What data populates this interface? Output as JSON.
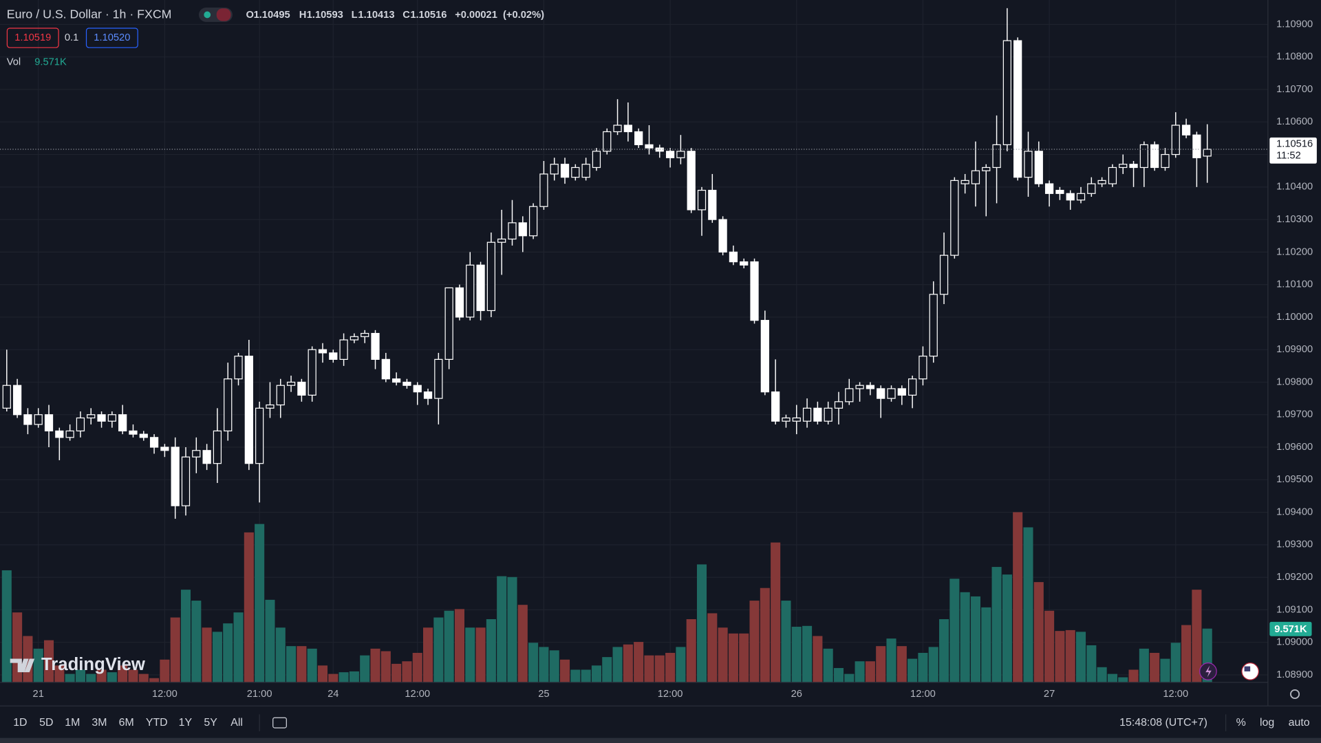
{
  "header": {
    "symbol": "Euro / U.S. Dollar · 1h · FXCM",
    "ohlc_labels": [
      "O",
      "H",
      "L",
      "C"
    ],
    "change": "+0.00021",
    "change_pct": "(+0.02%)",
    "bid": "1.10519",
    "spread": "0.1",
    "ask": "1.10520",
    "volume_label": "Vol"
  },
  "chart_data": {
    "type": "candlestick",
    "color": "#ffffff",
    "grid": true,
    "categories": [
      null,
      null,
      null,
      "21",
      null,
      null,
      null,
      null,
      null,
      null,
      null,
      null,
      null,
      null,
      null,
      "12:00",
      null,
      null,
      null,
      null,
      null,
      null,
      null,
      null,
      "21:00",
      null,
      null,
      null,
      null,
      null,
      null,
      "24",
      null,
      null,
      null,
      null,
      null,
      null,
      null,
      "12:00",
      null,
      null,
      null,
      null,
      null,
      null,
      null,
      null,
      null,
      null,
      null,
      "25",
      null,
      null,
      null,
      null,
      null,
      null,
      null,
      null,
      null,
      null,
      null,
      "12:00",
      null,
      null,
      null,
      null,
      null,
      null,
      null,
      null,
      null,
      null,
      null,
      "26",
      null,
      null,
      null,
      null,
      null,
      null,
      null,
      null,
      null,
      null,
      null,
      "12:00",
      null,
      null,
      null,
      null,
      null,
      null,
      null,
      null,
      null,
      null,
      null,
      "27",
      null,
      null,
      null,
      null,
      null,
      null,
      null,
      null,
      null,
      null,
      null,
      "12:00",
      null,
      null,
      null
    ],
    "open": [
      1.0972,
      1.0979,
      1.097,
      1.0967,
      1.097,
      1.0965,
      1.0963,
      1.0965,
      1.0969,
      1.097,
      1.0968,
      1.097,
      1.0965,
      1.0964,
      1.0963,
      1.096,
      1.096,
      1.0942,
      1.0957,
      1.0959,
      1.0955,
      1.0965,
      1.0981,
      1.0988,
      1.0955,
      1.0972,
      1.0973,
      1.0979,
      1.098,
      1.0976,
      1.099,
      1.0989,
      1.0987,
      1.0993,
      1.0994,
      1.0995,
      1.0987,
      1.0981,
      1.098,
      1.0979,
      1.0977,
      1.0975,
      1.0987,
      1.1009,
      1.1,
      1.1016,
      1.1002,
      1.1023,
      1.1024,
      1.1029,
      1.1025,
      1.1034,
      1.1044,
      1.1047,
      1.1043,
      1.1043,
      1.1046,
      1.1051,
      1.1057,
      1.1059,
      1.1057,
      1.1053,
      1.1052,
      1.1051,
      1.1049,
      1.1051,
      1.1033,
      1.1039,
      1.103,
      1.102,
      1.1017,
      1.1017,
      1.0999,
      1.0977,
      1.0968,
      1.0968,
      1.0968,
      1.0972,
      1.0968,
      1.0972,
      1.0974,
      1.0978,
      1.0979,
      1.0978,
      1.0975,
      1.0978,
      1.0976,
      1.0981,
      1.0988,
      1.1007,
      1.1019,
      1.1041,
      1.1041,
      1.1045,
      1.1046,
      1.1053,
      1.1085,
      1.1043,
      1.1051,
      1.1041,
      1.1039,
      1.1038,
      1.1036,
      1.1038,
      1.1041,
      1.1041,
      1.1046,
      1.1047,
      1.1046,
      1.1053,
      1.1046,
      1.105,
      1.1059,
      1.1056,
      1.10495
    ],
    "high": [
      1.099,
      1.0981,
      1.0972,
      1.0972,
      1.0973,
      1.0966,
      1.0967,
      1.0971,
      1.0972,
      1.0971,
      1.0971,
      1.0973,
      1.0967,
      1.0965,
      1.0964,
      1.0961,
      1.0963,
      1.096,
      1.0963,
      1.0961,
      1.0972,
      1.0986,
      1.0989,
      1.0993,
      1.0974,
      1.098,
      1.0981,
      1.0982,
      1.0981,
      1.0991,
      1.0992,
      1.099,
      1.0995,
      1.0995,
      1.0996,
      1.0996,
      1.0989,
      1.0983,
      1.0981,
      1.098,
      1.0978,
      1.0989,
      1.1009,
      1.101,
      1.102,
      1.1017,
      1.1026,
      1.1033,
      1.1036,
      1.1031,
      1.1035,
      1.1048,
      1.1049,
      1.1049,
      1.1047,
      1.1049,
      1.1052,
      1.1058,
      1.1067,
      1.1066,
      1.1058,
      1.1059,
      1.1053,
      1.1052,
      1.1056,
      1.1052,
      1.104,
      1.1044,
      1.1031,
      1.1022,
      1.1018,
      1.1018,
      1.1002,
      1.0987,
      1.097,
      1.0973,
      1.0975,
      1.0974,
      1.0974,
      1.0977,
      1.0981,
      1.098,
      1.098,
      1.0979,
      1.0979,
      1.0979,
      1.0982,
      1.0991,
      1.1011,
      1.1026,
      1.1043,
      1.1044,
      1.1054,
      1.1047,
      1.1062,
      1.1095,
      1.1086,
      1.1057,
      1.1054,
      1.1042,
      1.104,
      1.1039,
      1.104,
      1.1043,
      1.1043,
      1.1047,
      1.105,
      1.1048,
      1.1054,
      1.1054,
      1.1052,
      1.1063,
      1.1061,
      1.1057,
      1.10593
    ],
    "low": [
      1.0971,
      1.0969,
      1.0964,
      1.0966,
      1.096,
      1.0956,
      1.0962,
      1.0963,
      1.0967,
      1.0966,
      1.0966,
      1.0964,
      1.0963,
      1.0962,
      1.0958,
      1.0957,
      1.0938,
      1.0939,
      1.0952,
      1.0953,
      1.0949,
      1.0962,
      1.0979,
      1.0953,
      1.0943,
      1.0969,
      1.0969,
      1.0977,
      1.0974,
      1.0974,
      1.0986,
      1.0986,
      1.0985,
      1.0992,
      1.0992,
      1.0984,
      1.098,
      1.0979,
      1.0978,
      1.0973,
      1.0973,
      1.0967,
      1.0984,
      1.0999,
      1.0999,
      1.0999,
      1.1,
      1.1013,
      1.1022,
      1.102,
      1.1024,
      1.1033,
      1.1042,
      1.1041,
      1.1042,
      1.1042,
      1.1045,
      1.105,
      1.1056,
      1.1054,
      1.1052,
      1.105,
      1.1049,
      1.1046,
      1.1047,
      1.1032,
      1.1025,
      1.1029,
      1.1019,
      1.1016,
      1.1015,
      1.0998,
      1.0976,
      1.0967,
      1.0966,
      1.0964,
      1.0966,
      1.0967,
      1.0967,
      1.0967,
      1.0973,
      1.0974,
      1.0976,
      1.0969,
      1.0974,
      1.0973,
      1.0972,
      1.0979,
      1.0986,
      1.1004,
      1.1018,
      1.1038,
      1.1034,
      1.1031,
      1.1035,
      1.1051,
      1.1042,
      1.1037,
      1.104,
      1.1034,
      1.1036,
      1.1033,
      1.1035,
      1.1037,
      1.104,
      1.104,
      1.1044,
      1.104,
      1.104,
      1.1045,
      1.1045,
      1.1049,
      1.1055,
      1.104,
      1.10413
    ],
    "close": [
      1.0979,
      1.097,
      1.0967,
      1.097,
      1.0965,
      1.0963,
      1.0965,
      1.0969,
      1.097,
      1.0968,
      1.097,
      1.0965,
      1.0964,
      1.0963,
      1.096,
      1.0959,
      1.0942,
      1.0957,
      1.0959,
      1.0955,
      1.0965,
      1.0981,
      1.0988,
      1.0955,
      1.0972,
      1.0973,
      1.0979,
      1.098,
      1.0976,
      1.099,
      1.0989,
      1.0987,
      1.0993,
      1.0994,
      1.0995,
      1.0987,
      1.0981,
      1.098,
      1.0979,
      1.0977,
      1.0975,
      1.0987,
      1.1009,
      1.1,
      1.1016,
      1.1002,
      1.1023,
      1.1024,
      1.1029,
      1.1025,
      1.1034,
      1.1044,
      1.1047,
      1.1043,
      1.1046,
      1.1047,
      1.1051,
      1.1057,
      1.1059,
      1.1057,
      1.1053,
      1.1052,
      1.1051,
      1.1049,
      1.1051,
      1.1033,
      1.1039,
      1.103,
      1.102,
      1.1017,
      1.1016,
      1.0999,
      1.0977,
      1.0968,
      1.0969,
      1.0969,
      1.0972,
      1.0968,
      1.0972,
      1.0974,
      1.0978,
      1.0979,
      1.0978,
      1.0975,
      1.0978,
      1.0976,
      1.0981,
      1.0988,
      1.1007,
      1.1019,
      1.1042,
      1.1042,
      1.1045,
      1.1046,
      1.1053,
      1.1085,
      1.1043,
      1.1051,
      1.1041,
      1.1038,
      1.1038,
      1.1036,
      1.1038,
      1.1041,
      1.1042,
      1.1046,
      1.1047,
      1.1046,
      1.1053,
      1.1046,
      1.105,
      1.1059,
      1.1056,
      1.1049,
      1.10516
    ],
    "volume": {
      "up_color": "#1f6b63",
      "down_color": "#853838",
      "label_color": "#22ab94",
      "values": [
        19950,
        12450,
        8250,
        6000,
        7500,
        3000,
        1500,
        2250,
        1500,
        2250,
        1800,
        3000,
        2250,
        1500,
        750,
        4050,
        11550,
        16500,
        14550,
        9750,
        9000,
        10500,
        12450,
        26700,
        28200,
        14700,
        9750,
        6450,
        6450,
        6000,
        3000,
        1500,
        1800,
        1950,
        4800,
        6000,
        5550,
        3300,
        3750,
        5250,
        9750,
        11550,
        12750,
        13050,
        9750,
        9750,
        11250,
        18900,
        18750,
        13800,
        7050,
        6300,
        5700,
        4050,
        2250,
        2250,
        3000,
        4500,
        6300,
        6750,
        7200,
        4800,
        4800,
        5250,
        6300,
        11250,
        21000,
        12300,
        9750,
        8700,
        8700,
        14550,
        16800,
        24900,
        14550,
        9900,
        10050,
        8250,
        6000,
        2550,
        1500,
        3750,
        3750,
        6450,
        7800,
        6450,
        4200,
        5250,
        6300,
        11250,
        18450,
        16050,
        15300,
        13350,
        20550,
        19200,
        30300,
        27600,
        17850,
        12750,
        9150,
        9300,
        9000,
        6600,
        2700,
        1500,
        900,
        2250,
        6000,
        5250,
        4200,
        7050,
        10200,
        16500,
        9571
      ],
      "value_labels": [
        null,
        null,
        null,
        null,
        null,
        null,
        null,
        null,
        null,
        null,
        null,
        null,
        null,
        null,
        null,
        null,
        null,
        null,
        null,
        null,
        null,
        null,
        null,
        null,
        null,
        null,
        null,
        null,
        null,
        null,
        null,
        null,
        null,
        null,
        null,
        null,
        null,
        null,
        null,
        null,
        null,
        null,
        null,
        null,
        null,
        null,
        null,
        null,
        null,
        null,
        null,
        null,
        null,
        null,
        null,
        null,
        null,
        null,
        null,
        null,
        null,
        null,
        null,
        null,
        null,
        null,
        null,
        null,
        null,
        null,
        null,
        null,
        null,
        null,
        null,
        null,
        null,
        null,
        null,
        null,
        null,
        null,
        null,
        null,
        null,
        null,
        null,
        null,
        null,
        null,
        null,
        null,
        null,
        null,
        null,
        null,
        null,
        null,
        null,
        null,
        null,
        null,
        null,
        null,
        null,
        null,
        null,
        null,
        null,
        null,
        null,
        null,
        null,
        null,
        "9.571K"
      ]
    },
    "ylim": [
      1.08877,
      1.10975
    ],
    "yticks": [
      {
        "value": 1.089,
        "label": "1.08900"
      },
      {
        "value": 1.09,
        "label": "1.09000"
      },
      {
        "value": 1.091,
        "label": "1.09100"
      },
      {
        "value": 1.092,
        "label": "1.09200"
      },
      {
        "value": 1.093,
        "label": "1.09300"
      },
      {
        "value": 1.094,
        "label": "1.09400"
      },
      {
        "value": 1.095,
        "label": "1.09500"
      },
      {
        "value": 1.096,
        "label": "1.09600"
      },
      {
        "value": 1.097,
        "label": "1.09700"
      },
      {
        "value": 1.098,
        "label": "1.09800"
      },
      {
        "value": 1.099,
        "label": "1.09900"
      },
      {
        "value": 1.1,
        "label": "1.10000"
      },
      {
        "value": 1.101,
        "label": "1.10100"
      },
      {
        "value": 1.102,
        "label": "1.10200"
      },
      {
        "value": 1.103,
        "label": "1.10300"
      },
      {
        "value": 1.104,
        "label": "1.10400"
      },
      {
        "value": 1.105,
        "label": "1.10500"
      },
      {
        "value": 1.106,
        "label": "1.10600"
      },
      {
        "value": 1.107,
        "label": "1.10700"
      },
      {
        "value": 1.108,
        "label": "1.10800"
      },
      {
        "value": 1.109,
        "label": "1.10900"
      }
    ]
  },
  "price_label_timer": "11:52",
  "branding": "TradingView",
  "toolbar": {
    "ranges": [
      "1D",
      "5D",
      "1M",
      "3M",
      "6M",
      "YTD",
      "1Y",
      "5Y",
      "All"
    ],
    "clock": "15:48:08 (UTC+7)",
    "options": [
      "%",
      "log",
      "auto"
    ]
  }
}
